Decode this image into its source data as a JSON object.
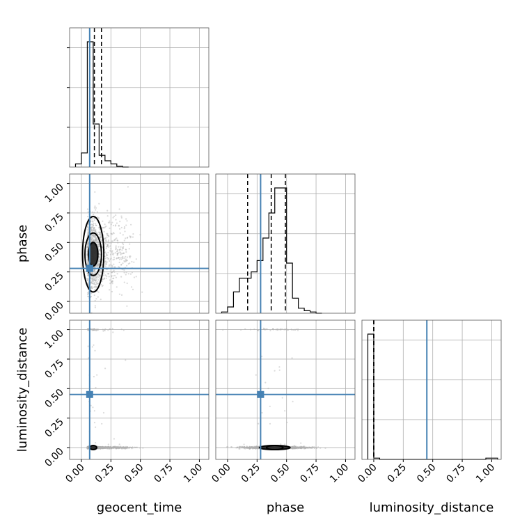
{
  "chart_data": {
    "type": "corner",
    "parameters": [
      "geocent_time",
      "phase",
      "luminosity_distance"
    ],
    "axis_labels": {
      "x": [
        "geocent_time",
        "phase",
        "luminosity_distance"
      ],
      "y": [
        "",
        "phase",
        "luminosity_distance"
      ]
    },
    "ticks": [
      0.0,
      0.25,
      0.5,
      0.75,
      1.0
    ],
    "tick_labels": [
      "0.00",
      "0.25",
      "0.50",
      "0.75",
      "1.00"
    ],
    "range": [
      -0.1,
      1.08
    ],
    "grid": true,
    "truths": {
      "geocent_time": 0.07,
      "phase": 0.28,
      "luminosity_distance": 0.45
    },
    "truth_color": "#4682b4",
    "contour_color": "#000000",
    "point_color": "#b0b0b0",
    "histograms": {
      "geocent_time": {
        "bin_edges": [
          -0.05,
          0.0,
          0.05,
          0.1,
          0.15,
          0.2,
          0.25,
          0.3,
          0.35,
          0.4
        ],
        "counts": [
          4,
          18,
          160,
          55,
          15,
          8,
          4,
          1,
          0
        ],
        "quantiles": [
          0.07,
          0.11,
          0.17
        ]
      },
      "phase": {
        "bin_edges": [
          -0.05,
          0.0,
          0.05,
          0.1,
          0.15,
          0.2,
          0.25,
          0.3,
          0.35,
          0.4,
          0.45,
          0.5,
          0.55,
          0.6,
          0.65,
          0.7,
          0.75,
          0.8
        ],
        "counts": [
          1,
          5,
          17,
          28,
          28,
          33,
          42,
          60,
          80,
          100,
          100,
          40,
          12,
          4,
          2,
          1,
          0
        ],
        "quantiles": [
          0.17,
          0.37,
          0.49
        ]
      },
      "luminosity_distance": {
        "bin_edges": [
          -0.05,
          0.0,
          0.05,
          0.95,
          1.0,
          1.05
        ],
        "counts": [
          98,
          1,
          0,
          1,
          1
        ],
        "quantiles": [
          0.0,
          0.0,
          0.0
        ]
      }
    },
    "scatter_panels": [
      {
        "x": "geocent_time",
        "y": "phase",
        "x_center": 0.1,
        "x_sd": 0.05,
        "y_center": 0.4,
        "y_sd": 0.15,
        "contour_levels": [
          [
            0.04,
            0.1
          ],
          [
            0.07,
            0.18
          ],
          [
            0.09,
            0.32
          ]
        ]
      },
      {
        "x": "geocent_time",
        "y": "luminosity_distance",
        "clusters": [
          {
            "y": 0.0,
            "fraction": 0.97
          },
          {
            "y": 1.0,
            "fraction": 0.03
          }
        ],
        "contour_levels": [
          [
            0.03,
            0.008
          ]
        ]
      },
      {
        "x": "phase",
        "y": "luminosity_distance",
        "clusters": [
          {
            "y": 0.0,
            "fraction": 0.97
          },
          {
            "y": 1.0,
            "fraction": 0.03
          }
        ],
        "contour_levels": [
          [
            0.13,
            0.012
          ],
          [
            0.07,
            0.006
          ]
        ]
      }
    ]
  }
}
